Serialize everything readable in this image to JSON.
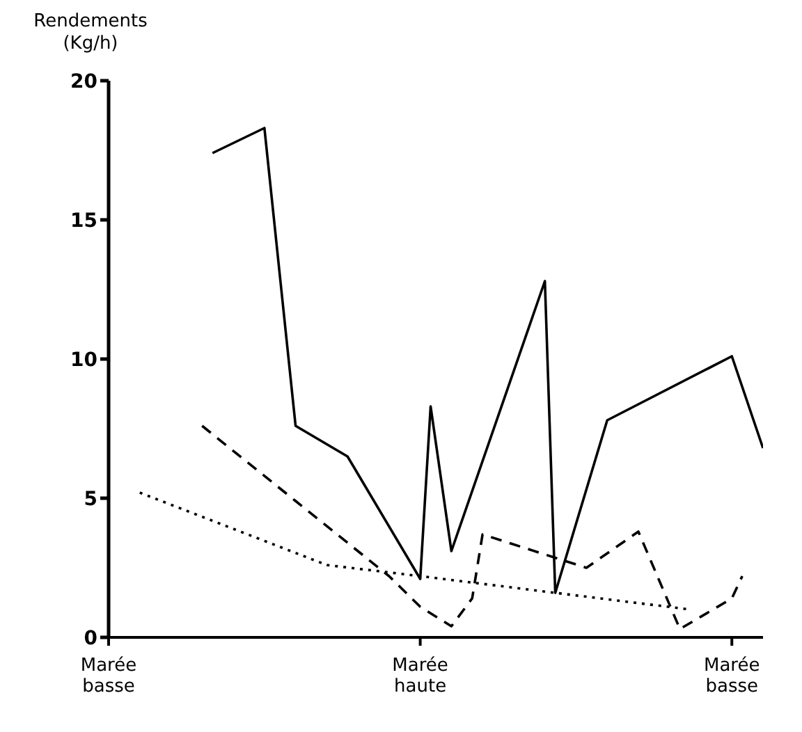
{
  "chart_data": {
    "type": "line",
    "ylabel": "Rendements (Kg/h)",
    "categories": [
      "Marée basse",
      null,
      null,
      null,
      null,
      null,
      null,
      null,
      null,
      null,
      null,
      null,
      null,
      null,
      null,
      null,
      null,
      null,
      null,
      null,
      null,
      null,
      null,
      null,
      null,
      null,
      null,
      null,
      null,
      null,
      "Marée haute",
      null,
      null,
      null,
      null,
      null,
      null,
      null,
      null,
      null,
      null,
      null,
      null,
      null,
      null,
      null,
      null,
      null,
      null,
      null,
      null,
      null,
      null,
      null,
      null,
      null,
      null,
      null,
      null,
      null,
      "Marée basse",
      null,
      null,
      null
    ],
    "ylim": [
      0,
      20
    ],
    "yticks": [
      0,
      5,
      10,
      15,
      20
    ],
    "grid": false,
    "marker": "none",
    "series": [
      {
        "color": "#000000",
        "line_style": "solid",
        "values": [
          null,
          null,
          null,
          null,
          null,
          null,
          null,
          null,
          null,
          null,
          17.4,
          null,
          null,
          null,
          null,
          18.3,
          null,
          null,
          7.6,
          null,
          null,
          null,
          null,
          6.5,
          null,
          null,
          null,
          null,
          null,
          null,
          2.1,
          8.3,
          null,
          3.1,
          null,
          null,
          null,
          null,
          null,
          null,
          null,
          null,
          12.8,
          1.6,
          null,
          null,
          null,
          null,
          7.8,
          null,
          null,
          null,
          null,
          null,
          null,
          null,
          null,
          null,
          null,
          null,
          10.1,
          null,
          null,
          6.8
        ]
      },
      {
        "color": "#000000",
        "line_style": "dashed",
        "values": [
          null,
          null,
          null,
          null,
          null,
          null,
          null,
          null,
          null,
          7.6,
          null,
          null,
          null,
          null,
          null,
          null,
          null,
          null,
          4.9,
          null,
          null,
          null,
          null,
          null,
          null,
          null,
          null,
          2.2,
          null,
          null,
          1.1,
          null,
          null,
          0.4,
          null,
          1.4,
          3.7,
          null,
          null,
          null,
          null,
          null,
          null,
          null,
          null,
          null,
          2.5,
          null,
          null,
          null,
          null,
          3.8,
          null,
          null,
          null,
          0.3,
          null,
          null,
          null,
          null,
          1.4,
          2.2,
          null,
          null
        ]
      },
      {
        "color": "#000000",
        "line_style": "dotted",
        "values": [
          null,
          null,
          null,
          5.2,
          null,
          null,
          null,
          null,
          null,
          null,
          null,
          null,
          null,
          null,
          null,
          null,
          null,
          null,
          null,
          null,
          null,
          2.6,
          null,
          null,
          null,
          null,
          null,
          null,
          null,
          null,
          2.2,
          null,
          null,
          null,
          null,
          null,
          null,
          null,
          null,
          null,
          null,
          null,
          null,
          1.6,
          null,
          null,
          null,
          null,
          null,
          null,
          null,
          null,
          null,
          null,
          null,
          null,
          1.0,
          null,
          null,
          null,
          null,
          null,
          null,
          null
        ]
      }
    ]
  }
}
